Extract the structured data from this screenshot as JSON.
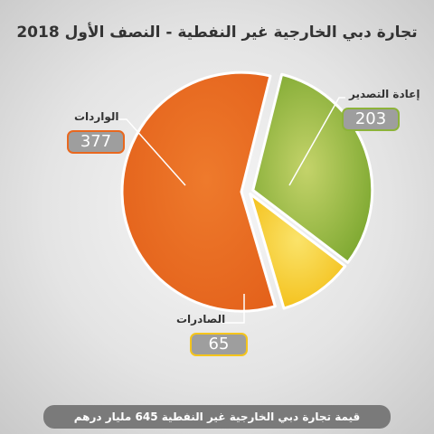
{
  "title": "تجارة دبي الخارجية غير النفطية - النصف الأول 2018",
  "chart_data": {
    "type": "pie",
    "slices": [
      {
        "label": "إعادة التصدير",
        "value": 203,
        "color": "#8db33a"
      },
      {
        "label": "الصادرات",
        "value": 65,
        "color": "#f5c51c"
      },
      {
        "label": "الواردات",
        "value": 377,
        "color": "#e8681f"
      }
    ]
  },
  "footer": "قيمة تجارة دبي الخارجية غير النفطية 645 مليار درهم"
}
